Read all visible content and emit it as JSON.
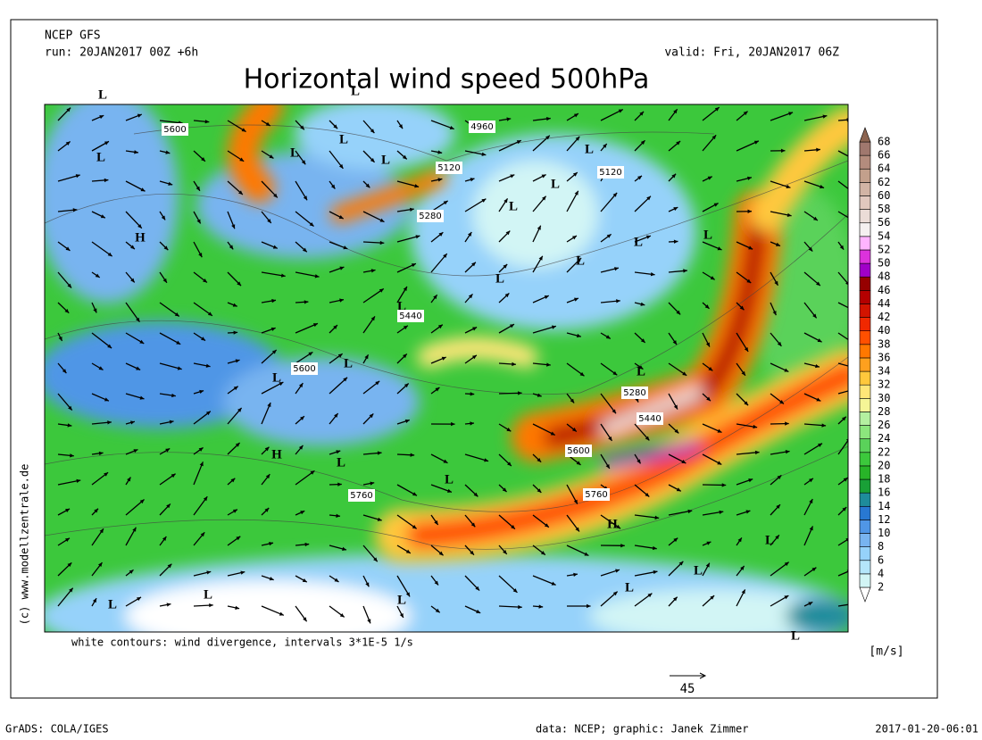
{
  "header": {
    "model": "NCEP GFS",
    "run": "run: 20JAN2017 00Z +6h",
    "valid": "valid: Fri, 20JAN2017 06Z",
    "title": "Horizontal wind speed 500hPa"
  },
  "map": {
    "contour_labels": [
      "5600",
      "4960",
      "5120",
      "5120",
      "5280",
      "5440",
      "5600",
      "5280",
      "5440",
      "5600",
      "5760",
      "5760"
    ],
    "centers": [
      "L",
      "L",
      "L",
      "L",
      "L",
      "L",
      "L",
      "L",
      "L",
      "H",
      "L",
      "L",
      "L",
      "L",
      "L",
      "L",
      "L",
      "L",
      "H",
      "L",
      "L",
      "H",
      "L",
      "L",
      "L",
      "L",
      "L",
      "L",
      "L"
    ],
    "credit": "(c) www.modellzentrale.de",
    "note": "white contours: wind divergence, intervals 3*1E-5 1/s",
    "reference_arrow": "45"
  },
  "colorbar": {
    "unit": "[m/s]",
    "levels": [
      2,
      4,
      6,
      8,
      10,
      12,
      14,
      16,
      18,
      20,
      22,
      24,
      26,
      28,
      30,
      32,
      34,
      36,
      38,
      40,
      42,
      44,
      46,
      48,
      50,
      52,
      54,
      56,
      58,
      60,
      62,
      64,
      66,
      68
    ],
    "colors": [
      "#ffffff",
      "#d2f5f5",
      "#b4e6fa",
      "#96d2fa",
      "#78b4f0",
      "#5096e6",
      "#2878d2",
      "#1e8c9b",
      "#19a037",
      "#28b428",
      "#3cc83c",
      "#5ad25a",
      "#8ce67d",
      "#b4f0a0",
      "#f5f596",
      "#ffe678",
      "#ffc83c",
      "#ffa01e",
      "#ff7800",
      "#ff5000",
      "#f02800",
      "#d21400",
      "#b40000",
      "#960000",
      "#a000c8",
      "#dc32dc",
      "#ffb4ff",
      "#f5f0f0",
      "#ebdcd7",
      "#e1c8be",
      "#d2b4a5",
      "#c3a08c",
      "#b48c7d",
      "#a0786e",
      "#8c6450"
    ]
  },
  "footer": {
    "left": "GrADS: COLA/IGES",
    "center": "data: NCEP; graphic: Janek Zimmer",
    "right": "2017-01-20-06:01"
  }
}
